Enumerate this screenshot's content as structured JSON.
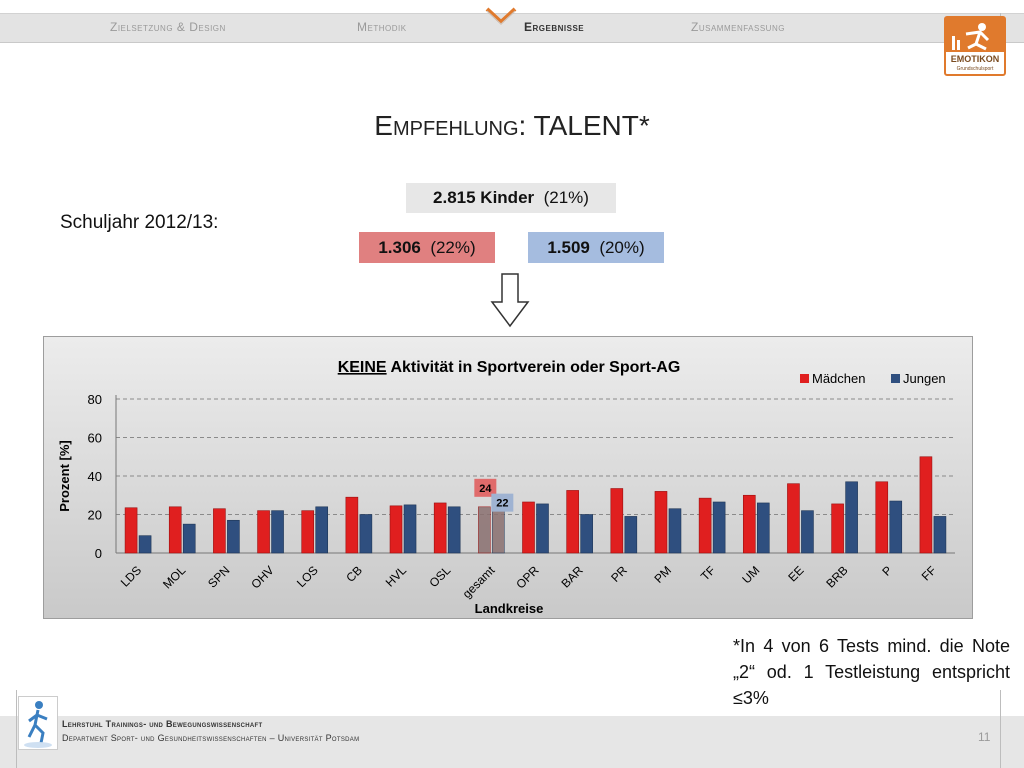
{
  "nav": {
    "items": [
      "Zielsetzung & Design",
      "Methodik",
      "Ergebnisse",
      "Zusammenfassung"
    ],
    "active_index": 2
  },
  "logo": {
    "text": "EMOTIKON",
    "subtext": "Grundschulsport"
  },
  "title": "Empfehlung: TALENT*",
  "totals": {
    "kids_count": "2.815 Kinder",
    "kids_pct": "(21%)",
    "girls_count": "1.306",
    "girls_pct": "(22%)",
    "boys_count": "1.509",
    "boys_pct": "(20%)"
  },
  "school_year": "Schuljahr 2012/13:",
  "colors": {
    "girls": "#e01f1f",
    "boys": "#2f4f7f",
    "gesamt": "#8a7070",
    "girls_label_bg": "#e06b6b",
    "boys_label_bg": "#9fb3d2"
  },
  "chart_data": {
    "type": "bar",
    "title_emph": "KEINE",
    "title": "Aktivität in Sportverein oder Sport-AG",
    "xlabel": "Landkreise",
    "ylabel": "Prozent [%]",
    "ylim": [
      0,
      80
    ],
    "yticks": [
      0,
      20,
      40,
      60,
      80
    ],
    "grid": true,
    "legend": "top-right",
    "categories": [
      "LDS",
      "MOL",
      "SPN",
      "OHV",
      "LOS",
      "CB",
      "HVL",
      "OSL",
      "gesamt",
      "OPR",
      "BAR",
      "PR",
      "PM",
      "TF",
      "UM",
      "EE",
      "BRB",
      "P",
      "FF"
    ],
    "series": [
      {
        "name": "Mädchen",
        "values": [
          23.5,
          24,
          23,
          22,
          22,
          29,
          24.5,
          26,
          24,
          26.5,
          32.5,
          33.5,
          32,
          28.5,
          30,
          36,
          25.5,
          37,
          50
        ]
      },
      {
        "name": "Jungen",
        "values": [
          9,
          15,
          17,
          22,
          24,
          20,
          25,
          24,
          22,
          25.5,
          20,
          19,
          23,
          26.5,
          26,
          22,
          37,
          27,
          19
        ]
      }
    ],
    "annotations": [
      {
        "category": "gesamt",
        "series": "Mädchen",
        "label": "24"
      },
      {
        "category": "gesamt",
        "series": "Jungen",
        "label": "22"
      }
    ]
  },
  "footnote": "*In 4 von 6 Tests mind. die Note „2“ od. 1 Testleistung entspricht ≤3%",
  "footer": {
    "line1": "Lehrstuhl Trainings- und Bewegungswissenschaft",
    "line2": "Department Sport- und Gesundheitswissenschaften – Universität Potsdam",
    "page": "11"
  }
}
